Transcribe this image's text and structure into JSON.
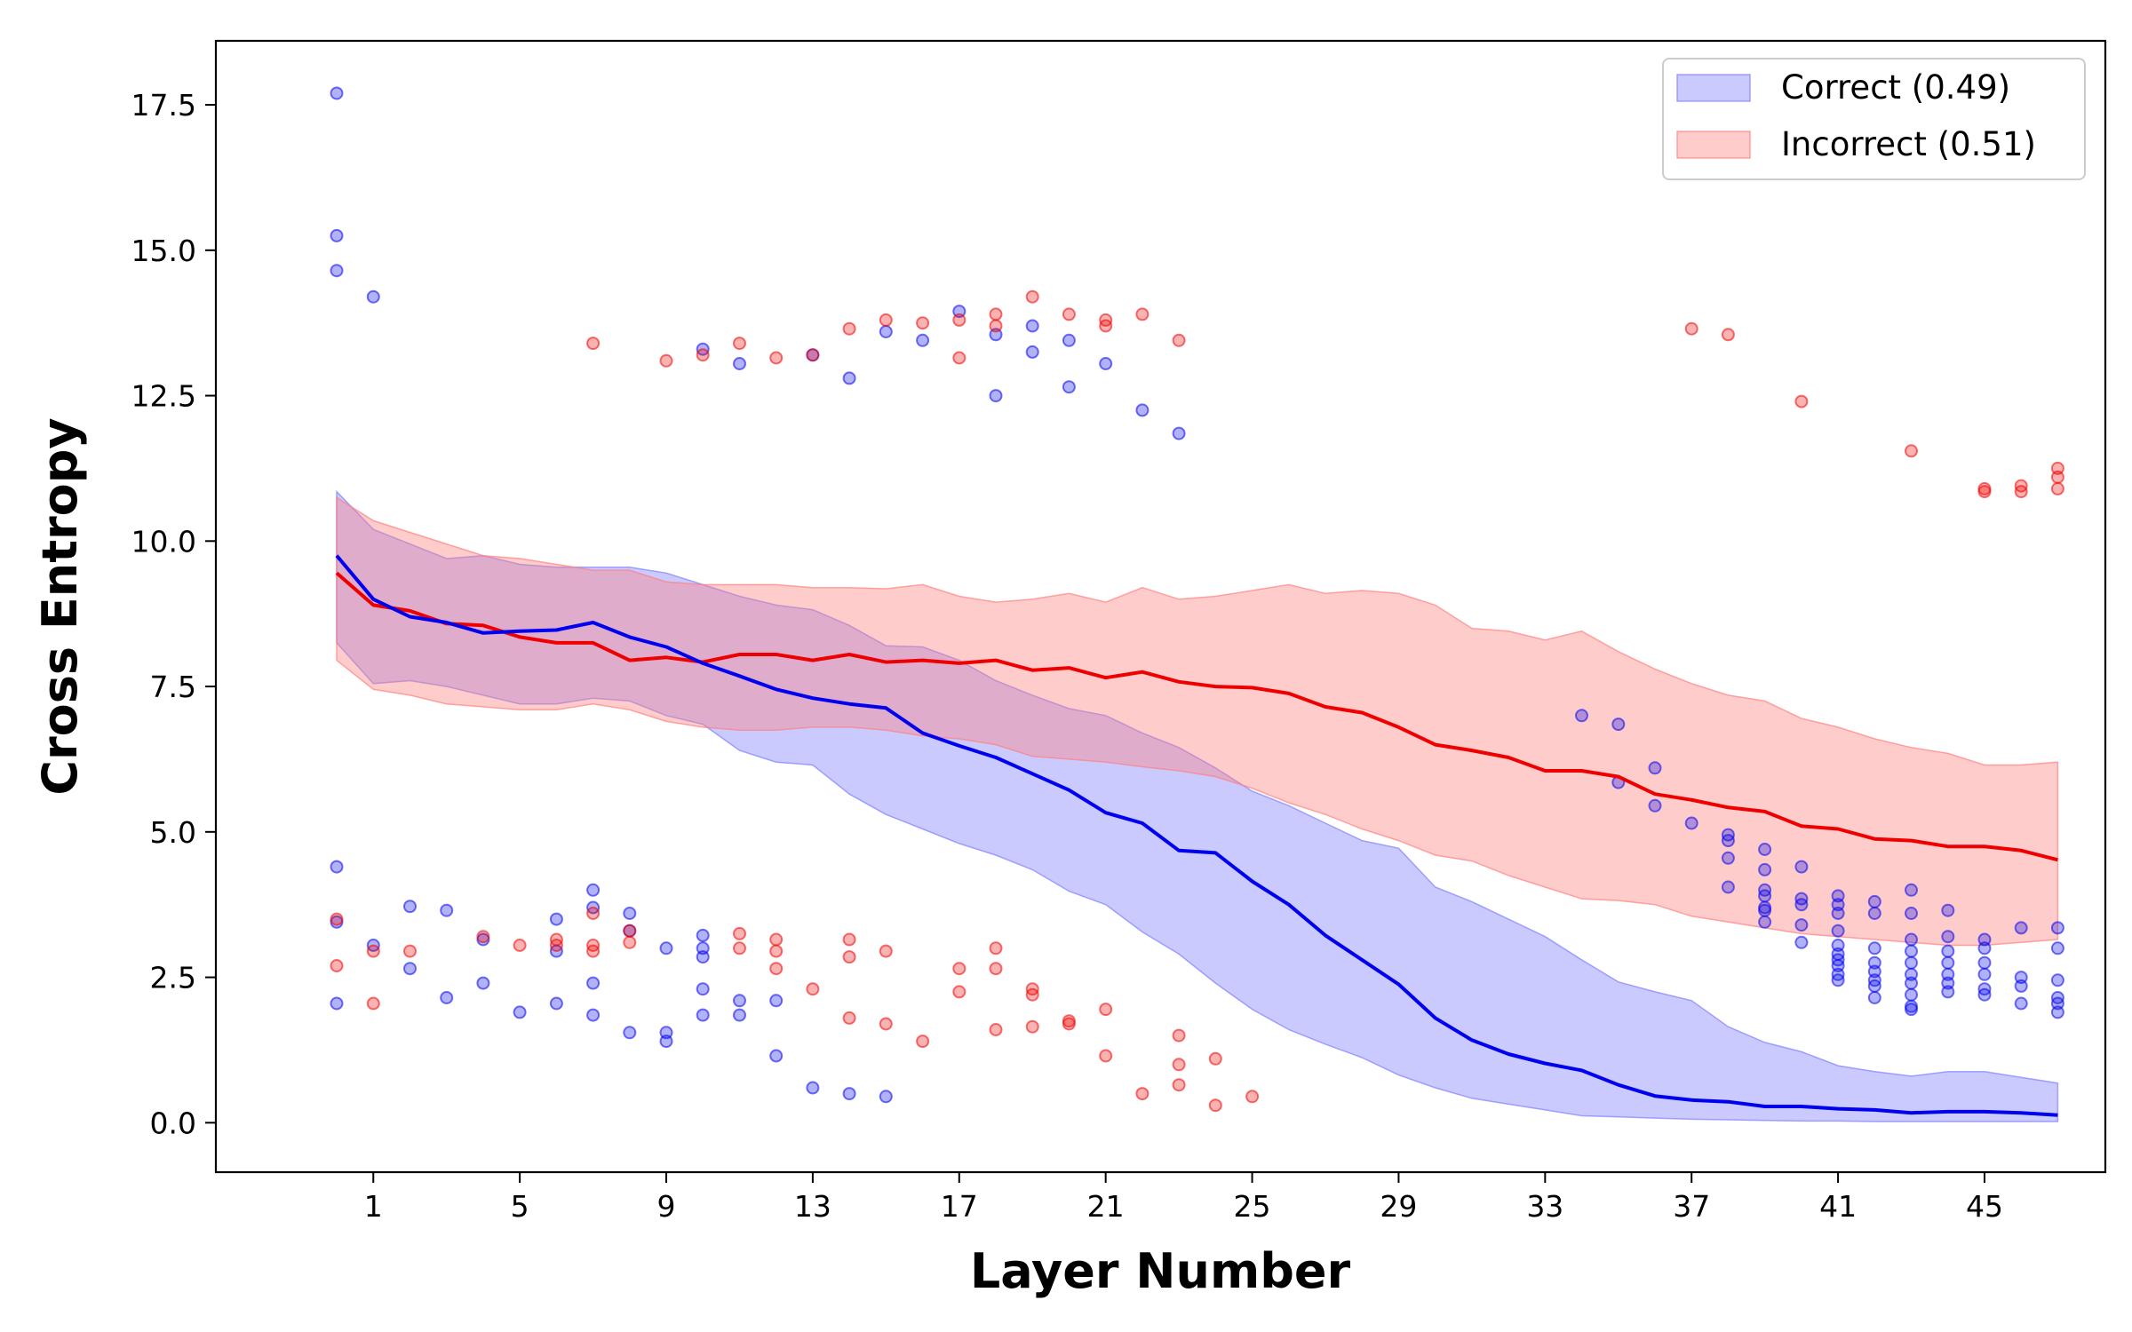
{
  "chart_data": {
    "type": "line",
    "title": "",
    "xlabel": "Layer Number",
    "ylabel": "Cross Entropy",
    "xlim": [
      -3.3,
      48.3
    ],
    "ylim": [
      -0.85,
      18.6
    ],
    "xticks": [
      1,
      5,
      9,
      13,
      17,
      21,
      25,
      29,
      33,
      37,
      41,
      45
    ],
    "yticks": [
      0.0,
      2.5,
      5.0,
      7.5,
      10.0,
      12.5,
      15.0,
      17.5
    ],
    "ytick_labels": [
      "0.0",
      "2.5",
      "5.0",
      "7.5",
      "10.0",
      "12.5",
      "15.0",
      "17.5"
    ],
    "legend_position": "upper right",
    "series": [
      {
        "name": "Correct (0.49)",
        "color": "#0000ee",
        "band_color": "#8080ff",
        "x": [
          0,
          1,
          2,
          3,
          4,
          5,
          6,
          7,
          8,
          9,
          10,
          11,
          12,
          13,
          14,
          15,
          16,
          17,
          18,
          19,
          20,
          21,
          22,
          23,
          24,
          25,
          26,
          27,
          28,
          29,
          30,
          31,
          32,
          33,
          34,
          35,
          36,
          37,
          38,
          39,
          40,
          41,
          42,
          43,
          44,
          45,
          46,
          47
        ],
        "mean": [
          9.75,
          9.0,
          8.7,
          8.6,
          8.42,
          8.45,
          8.47,
          8.6,
          8.35,
          8.18,
          7.9,
          7.68,
          7.45,
          7.3,
          7.2,
          7.13,
          6.7,
          6.48,
          6.28,
          6.0,
          5.72,
          5.33,
          5.15,
          4.68,
          4.64,
          4.15,
          3.75,
          3.22,
          2.8,
          2.38,
          1.8,
          1.42,
          1.18,
          1.02,
          0.9,
          0.65,
          0.46,
          0.39,
          0.36,
          0.28,
          0.28,
          0.24,
          0.22,
          0.17,
          0.19,
          0.19,
          0.17,
          0.13
        ],
        "upper": [
          10.85,
          10.2,
          9.95,
          9.7,
          9.75,
          9.6,
          9.55,
          9.55,
          9.55,
          9.45,
          9.25,
          9.05,
          8.9,
          8.82,
          8.55,
          8.2,
          8.18,
          7.95,
          7.6,
          7.35,
          7.12,
          7.0,
          6.7,
          6.45,
          6.1,
          5.7,
          5.45,
          5.15,
          4.85,
          4.72,
          4.05,
          3.8,
          3.5,
          3.2,
          2.8,
          2.42,
          2.25,
          2.1,
          1.65,
          1.38,
          1.22,
          0.98,
          0.88,
          0.8,
          0.88,
          0.88,
          0.78,
          0.68
        ],
        "lower": [
          8.25,
          7.55,
          7.6,
          7.5,
          7.35,
          7.2,
          7.2,
          7.3,
          7.25,
          7.0,
          6.85,
          6.4,
          6.2,
          6.15,
          5.65,
          5.3,
          5.05,
          4.8,
          4.6,
          4.35,
          3.98,
          3.75,
          3.28,
          2.9,
          2.4,
          1.95,
          1.6,
          1.35,
          1.12,
          0.82,
          0.6,
          0.42,
          0.32,
          0.22,
          0.12,
          0.1,
          0.08,
          0.06,
          0.05,
          0.04,
          0.03,
          0.03,
          0.02,
          0.02,
          0.02,
          0.02,
          0.02,
          0.02
        ],
        "outliers": [
          [
            0,
            17.7
          ],
          [
            0,
            15.25
          ],
          [
            0,
            14.65
          ],
          [
            0,
            4.4
          ],
          [
            0,
            3.45
          ],
          [
            0,
            2.05
          ],
          [
            1,
            14.2
          ],
          [
            1,
            3.05
          ],
          [
            2,
            3.72
          ],
          [
            2,
            2.65
          ],
          [
            3,
            3.65
          ],
          [
            3,
            2.15
          ],
          [
            4,
            3.15
          ],
          [
            4,
            2.4
          ],
          [
            5,
            1.9
          ],
          [
            6,
            3.5
          ],
          [
            6,
            2.95
          ],
          [
            6,
            2.05
          ],
          [
            7,
            4.0
          ],
          [
            7,
            3.7
          ],
          [
            7,
            2.4
          ],
          [
            7,
            1.85
          ],
          [
            8,
            3.6
          ],
          [
            8,
            3.3
          ],
          [
            8,
            1.55
          ],
          [
            9,
            3.0
          ],
          [
            9,
            1.55
          ],
          [
            9,
            1.4
          ],
          [
            10,
            13.3
          ],
          [
            10,
            3.22
          ],
          [
            10,
            3.0
          ],
          [
            10,
            2.85
          ],
          [
            10,
            2.3
          ],
          [
            10,
            1.85
          ],
          [
            11,
            13.05
          ],
          [
            11,
            2.1
          ],
          [
            11,
            1.85
          ],
          [
            12,
            2.1
          ],
          [
            12,
            1.15
          ],
          [
            13,
            13.2
          ],
          [
            13,
            0.6
          ],
          [
            14,
            12.8
          ],
          [
            14,
            0.5
          ],
          [
            15,
            13.6
          ],
          [
            15,
            0.45
          ],
          [
            16,
            13.45
          ],
          [
            17,
            13.95
          ],
          [
            18,
            13.55
          ],
          [
            18,
            12.5
          ],
          [
            19,
            13.7
          ],
          [
            19,
            13.25
          ],
          [
            20,
            13.45
          ],
          [
            20,
            12.65
          ],
          [
            21,
            13.05
          ],
          [
            22,
            12.25
          ],
          [
            23,
            11.85
          ],
          [
            34,
            7.0
          ],
          [
            35,
            6.85
          ],
          [
            35,
            5.85
          ],
          [
            36,
            6.1
          ],
          [
            36,
            5.45
          ],
          [
            37,
            5.15
          ],
          [
            38,
            4.95
          ],
          [
            38,
            4.85
          ],
          [
            38,
            4.55
          ],
          [
            38,
            4.05
          ],
          [
            39,
            4.7
          ],
          [
            39,
            4.35
          ],
          [
            39,
            4.0
          ],
          [
            39,
            3.9
          ],
          [
            39,
            3.7
          ],
          [
            39,
            3.65
          ],
          [
            39,
            3.45
          ],
          [
            40,
            4.4
          ],
          [
            40,
            3.85
          ],
          [
            40,
            3.75
          ],
          [
            40,
            3.4
          ],
          [
            40,
            3.1
          ],
          [
            41,
            3.9
          ],
          [
            41,
            3.75
          ],
          [
            41,
            3.6
          ],
          [
            41,
            3.3
          ],
          [
            41,
            3.05
          ],
          [
            41,
            2.9
          ],
          [
            41,
            2.8
          ],
          [
            41,
            2.7
          ],
          [
            41,
            2.55
          ],
          [
            41,
            2.45
          ],
          [
            42,
            3.8
          ],
          [
            42,
            3.6
          ],
          [
            42,
            3.0
          ],
          [
            42,
            2.75
          ],
          [
            42,
            2.6
          ],
          [
            42,
            2.45
          ],
          [
            42,
            2.35
          ],
          [
            42,
            2.15
          ],
          [
            43,
            4.0
          ],
          [
            43,
            3.6
          ],
          [
            43,
            3.15
          ],
          [
            43,
            2.95
          ],
          [
            43,
            2.75
          ],
          [
            43,
            2.55
          ],
          [
            43,
            2.4
          ],
          [
            43,
            2.2
          ],
          [
            43,
            2.0
          ],
          [
            43,
            1.95
          ],
          [
            44,
            3.65
          ],
          [
            44,
            3.2
          ],
          [
            44,
            2.95
          ],
          [
            44,
            2.75
          ],
          [
            44,
            2.55
          ],
          [
            44,
            2.4
          ],
          [
            44,
            2.25
          ],
          [
            45,
            3.15
          ],
          [
            45,
            3.0
          ],
          [
            45,
            2.75
          ],
          [
            45,
            2.55
          ],
          [
            45,
            2.3
          ],
          [
            45,
            2.2
          ],
          [
            46,
            3.35
          ],
          [
            46,
            2.5
          ],
          [
            46,
            2.35
          ],
          [
            46,
            2.05
          ],
          [
            47,
            3.35
          ],
          [
            47,
            3.0
          ],
          [
            47,
            2.45
          ],
          [
            47,
            2.15
          ],
          [
            47,
            2.05
          ],
          [
            47,
            1.9
          ]
        ]
      },
      {
        "name": "Incorrect (0.51)",
        "color": "#ee0000",
        "band_color": "#ff8080",
        "x": [
          0,
          1,
          2,
          3,
          4,
          5,
          6,
          7,
          8,
          9,
          10,
          11,
          12,
          13,
          14,
          15,
          16,
          17,
          18,
          19,
          20,
          21,
          22,
          23,
          24,
          25,
          26,
          27,
          28,
          29,
          30,
          31,
          32,
          33,
          34,
          35,
          36,
          37,
          38,
          39,
          40,
          41,
          42,
          43,
          44,
          45,
          46,
          47
        ],
        "mean": [
          9.45,
          8.9,
          8.8,
          8.58,
          8.55,
          8.35,
          8.25,
          8.25,
          7.95,
          8.0,
          7.92,
          8.05,
          8.05,
          7.95,
          8.05,
          7.92,
          7.95,
          7.9,
          7.95,
          7.78,
          7.82,
          7.65,
          7.75,
          7.58,
          7.5,
          7.48,
          7.38,
          7.15,
          7.05,
          6.8,
          6.5,
          6.4,
          6.28,
          6.05,
          6.05,
          5.95,
          5.65,
          5.55,
          5.42,
          5.35,
          5.1,
          5.05,
          4.88,
          4.85,
          4.75,
          4.75,
          4.68,
          4.52
        ],
        "upper": [
          10.75,
          10.35,
          10.15,
          9.95,
          9.75,
          9.7,
          9.6,
          9.5,
          9.5,
          9.3,
          9.25,
          9.25,
          9.25,
          9.2,
          9.2,
          9.18,
          9.25,
          9.05,
          8.95,
          9.0,
          9.1,
          8.95,
          9.2,
          9.0,
          9.05,
          9.15,
          9.25,
          9.1,
          9.15,
          9.1,
          8.9,
          8.5,
          8.45,
          8.3,
          8.45,
          8.1,
          7.8,
          7.55,
          7.35,
          7.25,
          6.95,
          6.8,
          6.6,
          6.45,
          6.35,
          6.15,
          6.15,
          6.2
        ],
        "lower": [
          7.95,
          7.45,
          7.35,
          7.2,
          7.15,
          7.1,
          7.1,
          7.2,
          7.1,
          6.9,
          6.8,
          6.75,
          6.75,
          6.8,
          6.8,
          6.75,
          6.65,
          6.6,
          6.5,
          6.3,
          6.25,
          6.2,
          6.12,
          6.05,
          5.95,
          5.75,
          5.5,
          5.3,
          5.05,
          4.85,
          4.6,
          4.5,
          4.25,
          4.05,
          3.85,
          3.82,
          3.75,
          3.55,
          3.45,
          3.35,
          3.25,
          3.2,
          3.15,
          3.1,
          3.05,
          3.05,
          3.1,
          3.15
        ],
        "outliers": [
          [
            0,
            3.5
          ],
          [
            0,
            2.7
          ],
          [
            1,
            2.95
          ],
          [
            1,
            2.05
          ],
          [
            2,
            2.95
          ],
          [
            4,
            3.2
          ],
          [
            5,
            3.05
          ],
          [
            6,
            3.15
          ],
          [
            6,
            3.05
          ],
          [
            7,
            13.4
          ],
          [
            7,
            3.05
          ],
          [
            7,
            2.95
          ],
          [
            7,
            3.6
          ],
          [
            8,
            3.1
          ],
          [
            8,
            3.3
          ],
          [
            9,
            13.1
          ],
          [
            10,
            13.2
          ],
          [
            11,
            13.4
          ],
          [
            11,
            3.25
          ],
          [
            11,
            3.0
          ],
          [
            12,
            13.15
          ],
          [
            12,
            3.15
          ],
          [
            12,
            2.95
          ],
          [
            12,
            2.65
          ],
          [
            13,
            13.2
          ],
          [
            13,
            2.3
          ],
          [
            14,
            13.65
          ],
          [
            14,
            3.15
          ],
          [
            14,
            2.85
          ],
          [
            14,
            1.8
          ],
          [
            15,
            13.8
          ],
          [
            15,
            2.95
          ],
          [
            15,
            1.7
          ],
          [
            16,
            13.75
          ],
          [
            16,
            1.4
          ],
          [
            17,
            13.8
          ],
          [
            17,
            13.15
          ],
          [
            17,
            2.65
          ],
          [
            17,
            2.25
          ],
          [
            18,
            13.9
          ],
          [
            18,
            13.7
          ],
          [
            18,
            3.0
          ],
          [
            18,
            2.65
          ],
          [
            18,
            1.6
          ],
          [
            19,
            14.2
          ],
          [
            19,
            2.3
          ],
          [
            19,
            2.2
          ],
          [
            19,
            1.65
          ],
          [
            20,
            13.9
          ],
          [
            20,
            1.75
          ],
          [
            20,
            1.7
          ],
          [
            21,
            13.8
          ],
          [
            21,
            13.7
          ],
          [
            21,
            1.95
          ],
          [
            21,
            1.15
          ],
          [
            22,
            13.9
          ],
          [
            22,
            0.5
          ],
          [
            23,
            13.45
          ],
          [
            23,
            1.5
          ],
          [
            23,
            1.0
          ],
          [
            23,
            0.65
          ],
          [
            24,
            1.1
          ],
          [
            24,
            0.3
          ],
          [
            25,
            0.45
          ],
          [
            37,
            13.65
          ],
          [
            38,
            13.55
          ],
          [
            40,
            12.4
          ],
          [
            43,
            11.55
          ],
          [
            45,
            10.9
          ],
          [
            45,
            10.85
          ],
          [
            46,
            10.95
          ],
          [
            46,
            10.85
          ],
          [
            47,
            11.25
          ],
          [
            47,
            11.1
          ],
          [
            47,
            10.9
          ]
        ]
      }
    ]
  }
}
